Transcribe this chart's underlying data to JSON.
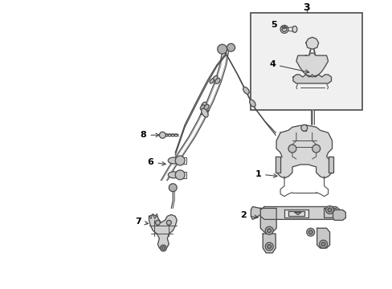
{
  "bg_color": "#ffffff",
  "line_color": "#4a4a4a",
  "label_color": "#000000",
  "fig_width": 4.89,
  "fig_height": 3.6,
  "dpi": 100
}
